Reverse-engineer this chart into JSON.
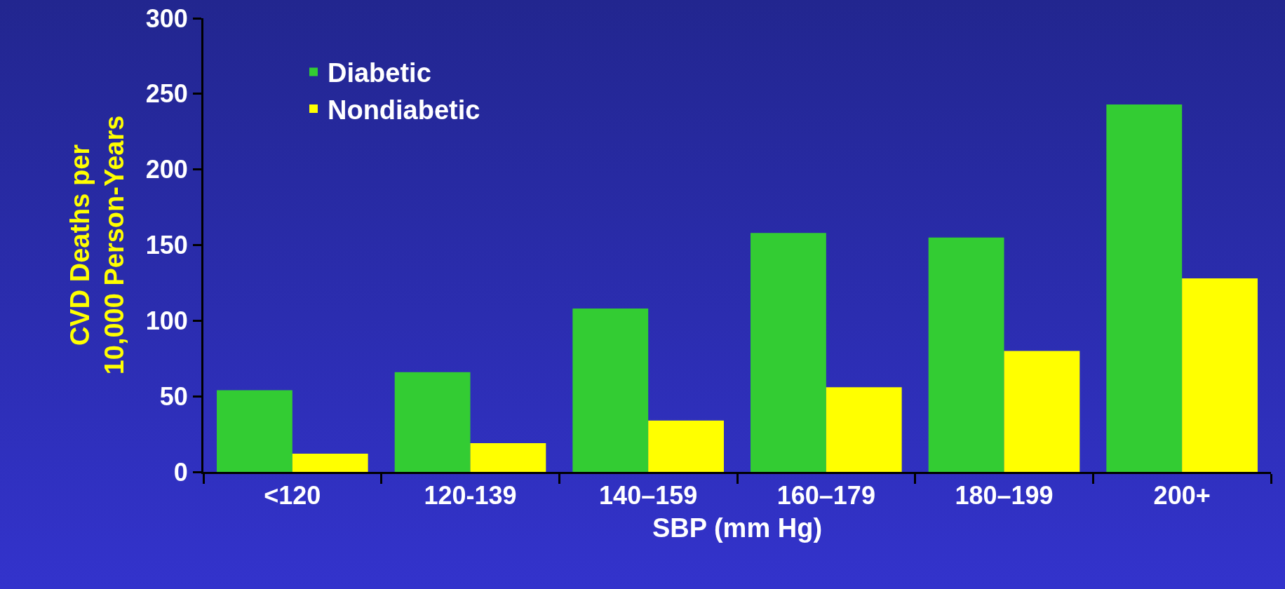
{
  "chart_data": {
    "type": "bar",
    "xlabel": "SBP (mm Hg)",
    "ylabel": "CVD Deaths per\n10,000 Person-Years",
    "categories": [
      "<120",
      "120-139",
      "140–159",
      "160–179",
      "180–199",
      "200+"
    ],
    "series": [
      {
        "name": "Diabetic",
        "color": "#33cc33",
        "values": [
          54,
          66,
          108,
          158,
          155,
          243
        ]
      },
      {
        "name": "Nondiabetic",
        "color": "#ffff00",
        "values": [
          12,
          19,
          34,
          56,
          80,
          128
        ]
      }
    ],
    "ylim": [
      0,
      300
    ],
    "yticks": [
      0,
      50,
      100,
      150,
      200,
      250,
      300
    ],
    "grid": false,
    "legend": "top left"
  }
}
